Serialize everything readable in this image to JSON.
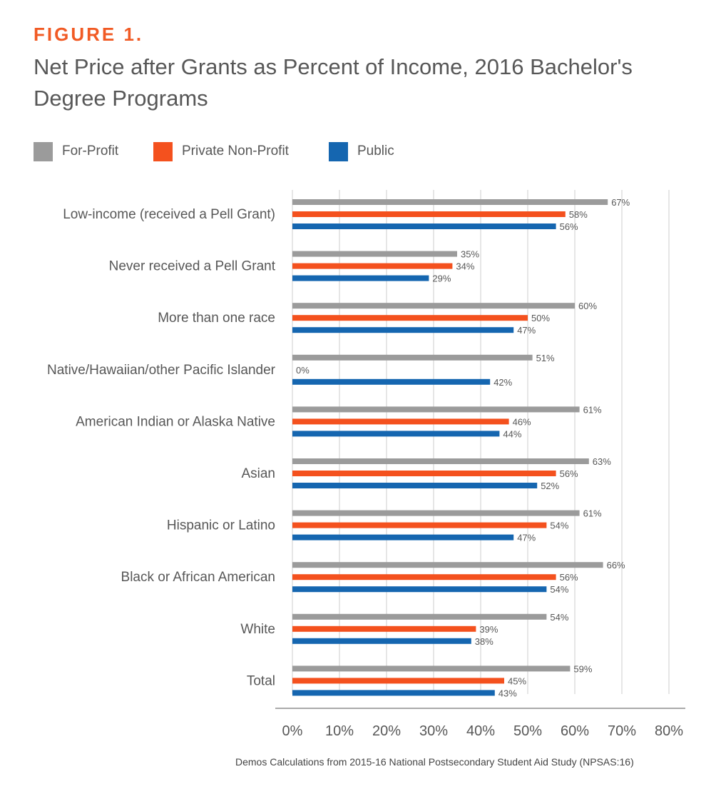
{
  "figure_label": "FIGURE 1.",
  "title": "Net Price after Grants as Percent of Income, 2016 Bachelor's Degree Programs",
  "source": "Demos Calculations from 2015-16 National Postsecondary Student Aid Study (NPSAS:16)",
  "colors": {
    "for_profit": "#9b9b9b",
    "private_non_profit": "#f4511e",
    "public": "#1566b0",
    "text": "#575757",
    "grid": "#dddddd",
    "axis": "#aaaaaa"
  },
  "chart_data": {
    "type": "bar",
    "orientation": "horizontal",
    "title": "Net Price after Grants as Percent of Income, 2016 Bachelor's Degree Programs",
    "xlabel": "",
    "ylabel": "",
    "xlim": [
      0,
      80
    ],
    "ticks": [
      0,
      10,
      20,
      30,
      40,
      50,
      60,
      70,
      80
    ],
    "tick_labels": [
      "0%",
      "10%",
      "20%",
      "30%",
      "40%",
      "50%",
      "60%",
      "70%",
      "80%"
    ],
    "value_suffix": "%",
    "grid": true,
    "legend_placement": "top-left",
    "categories": [
      "Low-income (received a Pell Grant)",
      "Never received a Pell Grant",
      "More than one race",
      "Native/Hawaiian/other Pacific Islander",
      "American Indian or Alaska Native",
      "Asian",
      "Hispanic or Latino",
      "Black or African American",
      "White",
      "Total"
    ],
    "series": [
      {
        "name": "For-Profit",
        "color": "#9b9b9b",
        "values": [
          67,
          35,
          60,
          51,
          61,
          63,
          61,
          66,
          54,
          59
        ]
      },
      {
        "name": "Private Non-Profit",
        "color": "#f4511e",
        "values": [
          58,
          34,
          50,
          0,
          46,
          56,
          54,
          56,
          39,
          45
        ]
      },
      {
        "name": "Public",
        "color": "#1566b0",
        "values": [
          56,
          29,
          47,
          42,
          44,
          52,
          47,
          54,
          38,
          43
        ]
      }
    ]
  }
}
